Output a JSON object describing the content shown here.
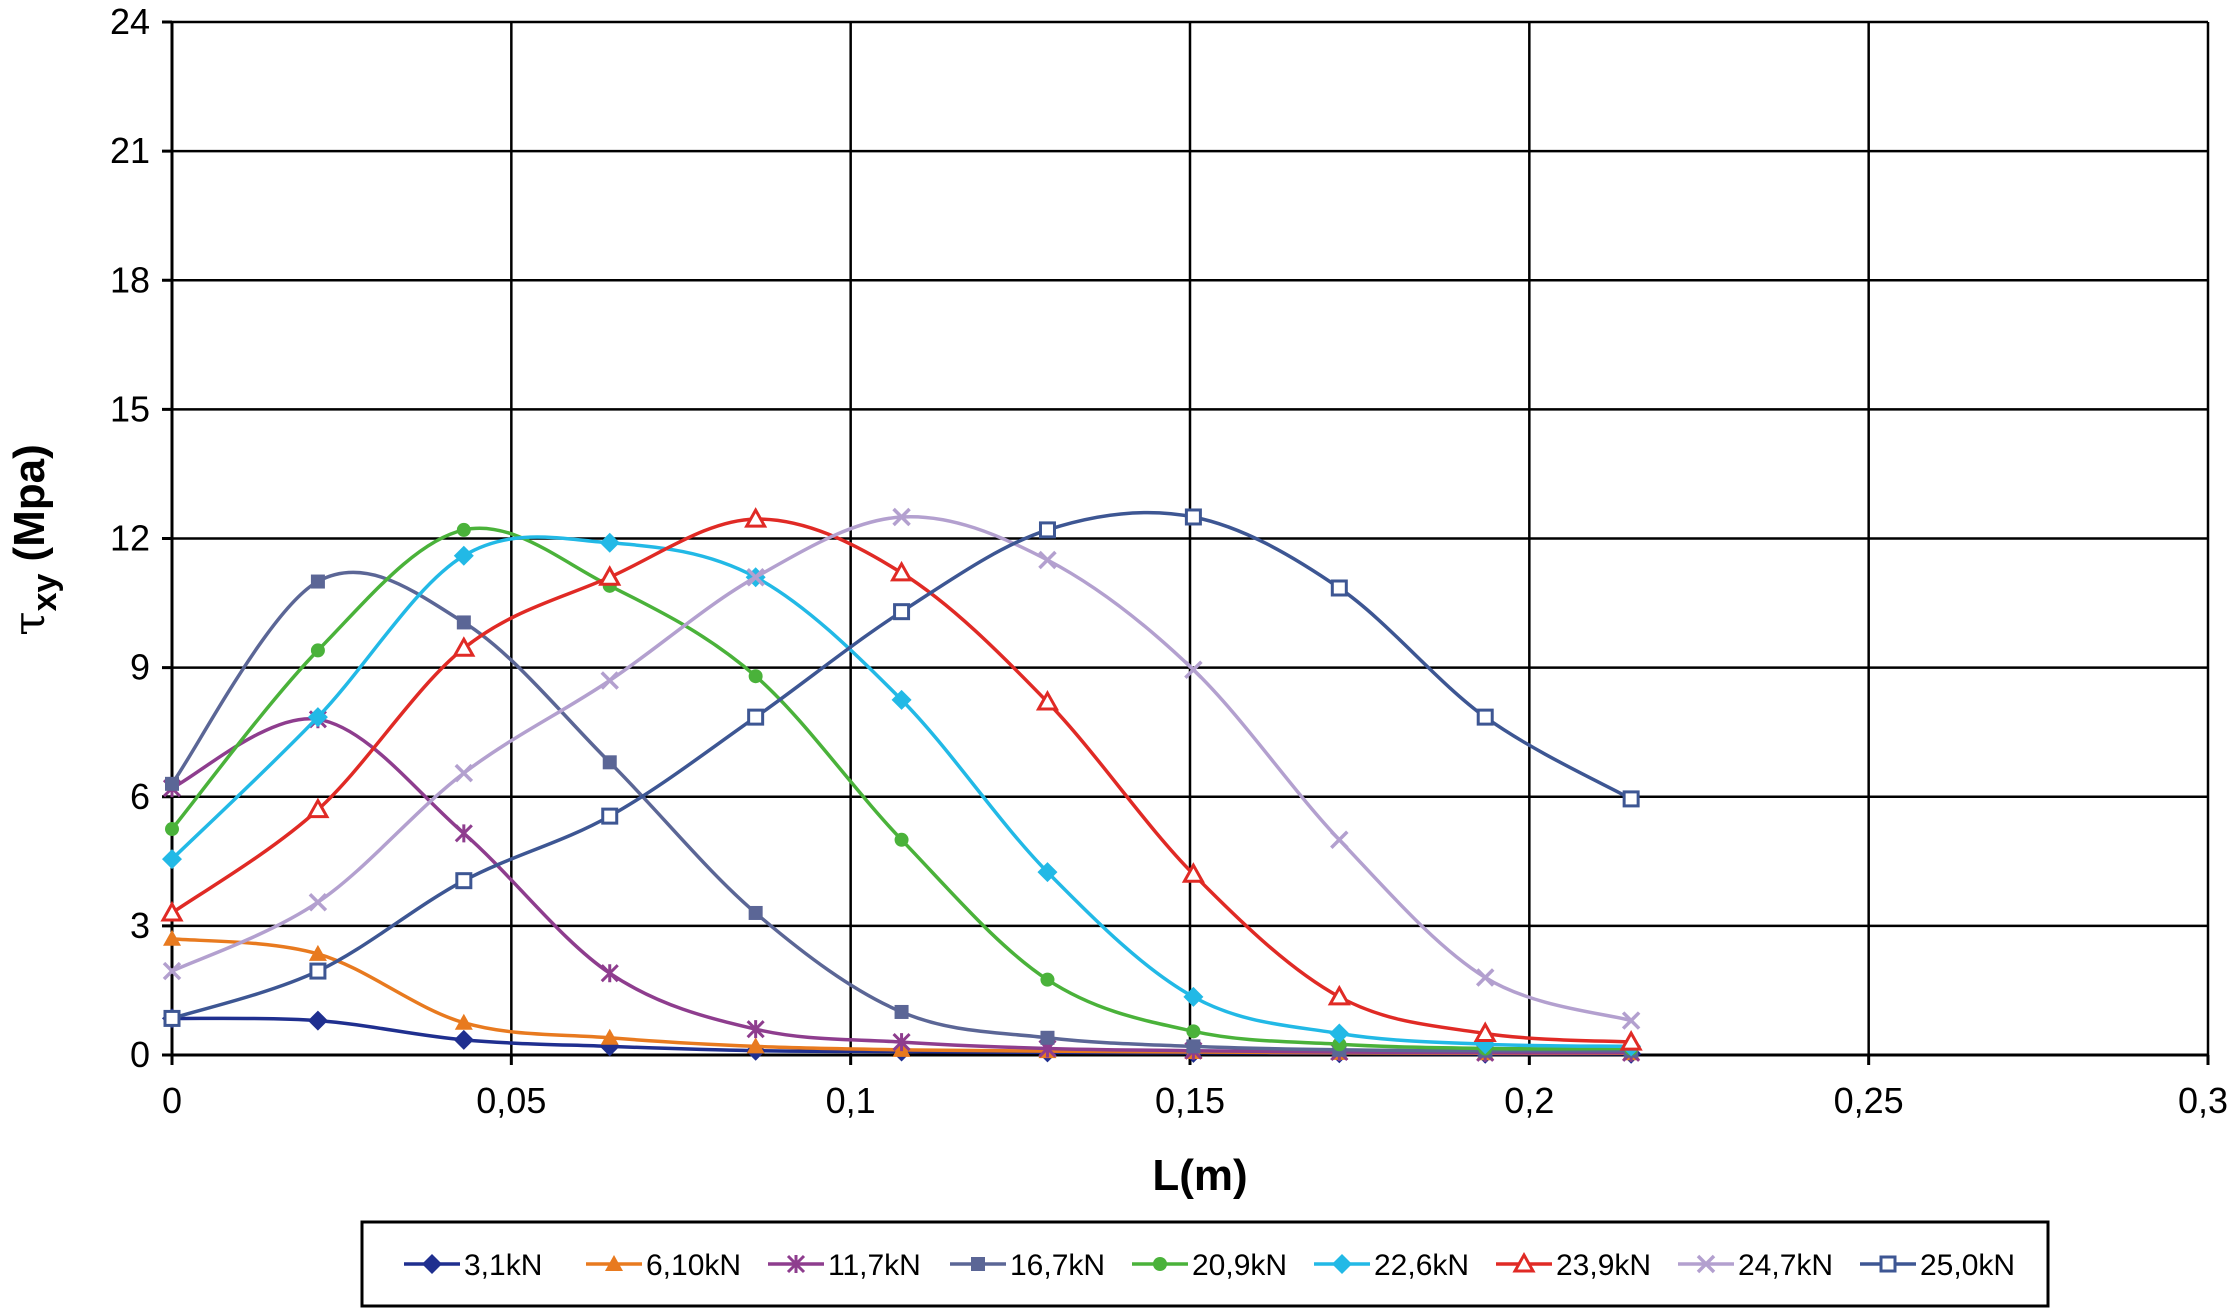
{
  "chart_data": {
    "type": "line",
    "title": "",
    "xlabel": "L(m)",
    "ylabel_main": "τ",
    "ylabel_sub": "xy",
    "ylabel_unit": "(Mpa)",
    "xlim": [
      0,
      0.3
    ],
    "ylim": [
      0,
      24
    ],
    "x_ticks": [
      0,
      0.05,
      0.1,
      0.15,
      0.2,
      0.25,
      0.3
    ],
    "x_tick_labels": [
      "0",
      "0,05",
      "0,1",
      "0,15",
      "0,2",
      "0,25",
      "0,3"
    ],
    "y_ticks": [
      0,
      3,
      6,
      9,
      12,
      15,
      18,
      21,
      24
    ],
    "y_tick_labels": [
      "0",
      "3",
      "6",
      "9",
      "12",
      "15",
      "18",
      "21",
      "24"
    ],
    "grid": true,
    "legend_position": "bottom",
    "x": [
      0,
      0.0215,
      0.043,
      0.0645,
      0.086,
      0.1075,
      0.129,
      0.1505,
      0.172,
      0.1935,
      0.215
    ],
    "series": [
      {
        "name": "3,1kN",
        "color": "#1f2f8f",
        "marker": "diamond",
        "values": [
          0.85,
          0.8,
          0.35,
          0.2,
          0.1,
          0.08,
          0.06,
          0.05,
          0.04,
          0.03,
          0.03
        ]
      },
      {
        "name": "6,10kN",
        "color": "#e87a1f",
        "marker": "triangle",
        "values": [
          2.7,
          2.35,
          0.75,
          0.4,
          0.2,
          0.12,
          0.09,
          0.07,
          0.05,
          0.04,
          0.04
        ]
      },
      {
        "name": "11,7kN",
        "color": "#8e3d8e",
        "marker": "xstar",
        "values": [
          6.2,
          7.8,
          5.15,
          1.9,
          0.6,
          0.3,
          0.15,
          0.1,
          0.07,
          0.05,
          0.05
        ]
      },
      {
        "name": "16,7kN",
        "color": "#5b6696",
        "marker": "square",
        "values": [
          6.3,
          11.0,
          10.05,
          6.8,
          3.3,
          1.0,
          0.4,
          0.2,
          0.12,
          0.1,
          0.1
        ]
      },
      {
        "name": "20,9kN",
        "color": "#4ab23a",
        "marker": "circle",
        "values": [
          5.25,
          9.4,
          12.2,
          10.9,
          8.8,
          5.0,
          1.75,
          0.55,
          0.25,
          0.15,
          0.15
        ]
      },
      {
        "name": "22,6kN",
        "color": "#22b9e6",
        "marker": "diamond",
        "values": [
          4.55,
          7.85,
          11.6,
          11.9,
          11.1,
          8.25,
          4.25,
          1.35,
          0.5,
          0.25,
          0.2
        ]
      },
      {
        "name": "23,9kN",
        "color": "#e02a25",
        "marker": "triangle-open",
        "values": [
          3.3,
          5.7,
          9.45,
          11.1,
          12.45,
          11.2,
          8.2,
          4.2,
          1.35,
          0.5,
          0.3
        ]
      },
      {
        "name": "24,7kN",
        "color": "#b3a0cf",
        "marker": "x",
        "values": [
          1.95,
          3.55,
          6.55,
          8.7,
          11.1,
          12.5,
          11.5,
          8.95,
          5.0,
          1.8,
          0.8
        ]
      },
      {
        "name": "25,0kN",
        "color": "#3d5693",
        "marker": "square-open",
        "values": [
          0.85,
          1.95,
          4.05,
          5.55,
          7.85,
          10.3,
          12.2,
          12.5,
          10.85,
          7.85,
          5.95
        ]
      }
    ]
  }
}
